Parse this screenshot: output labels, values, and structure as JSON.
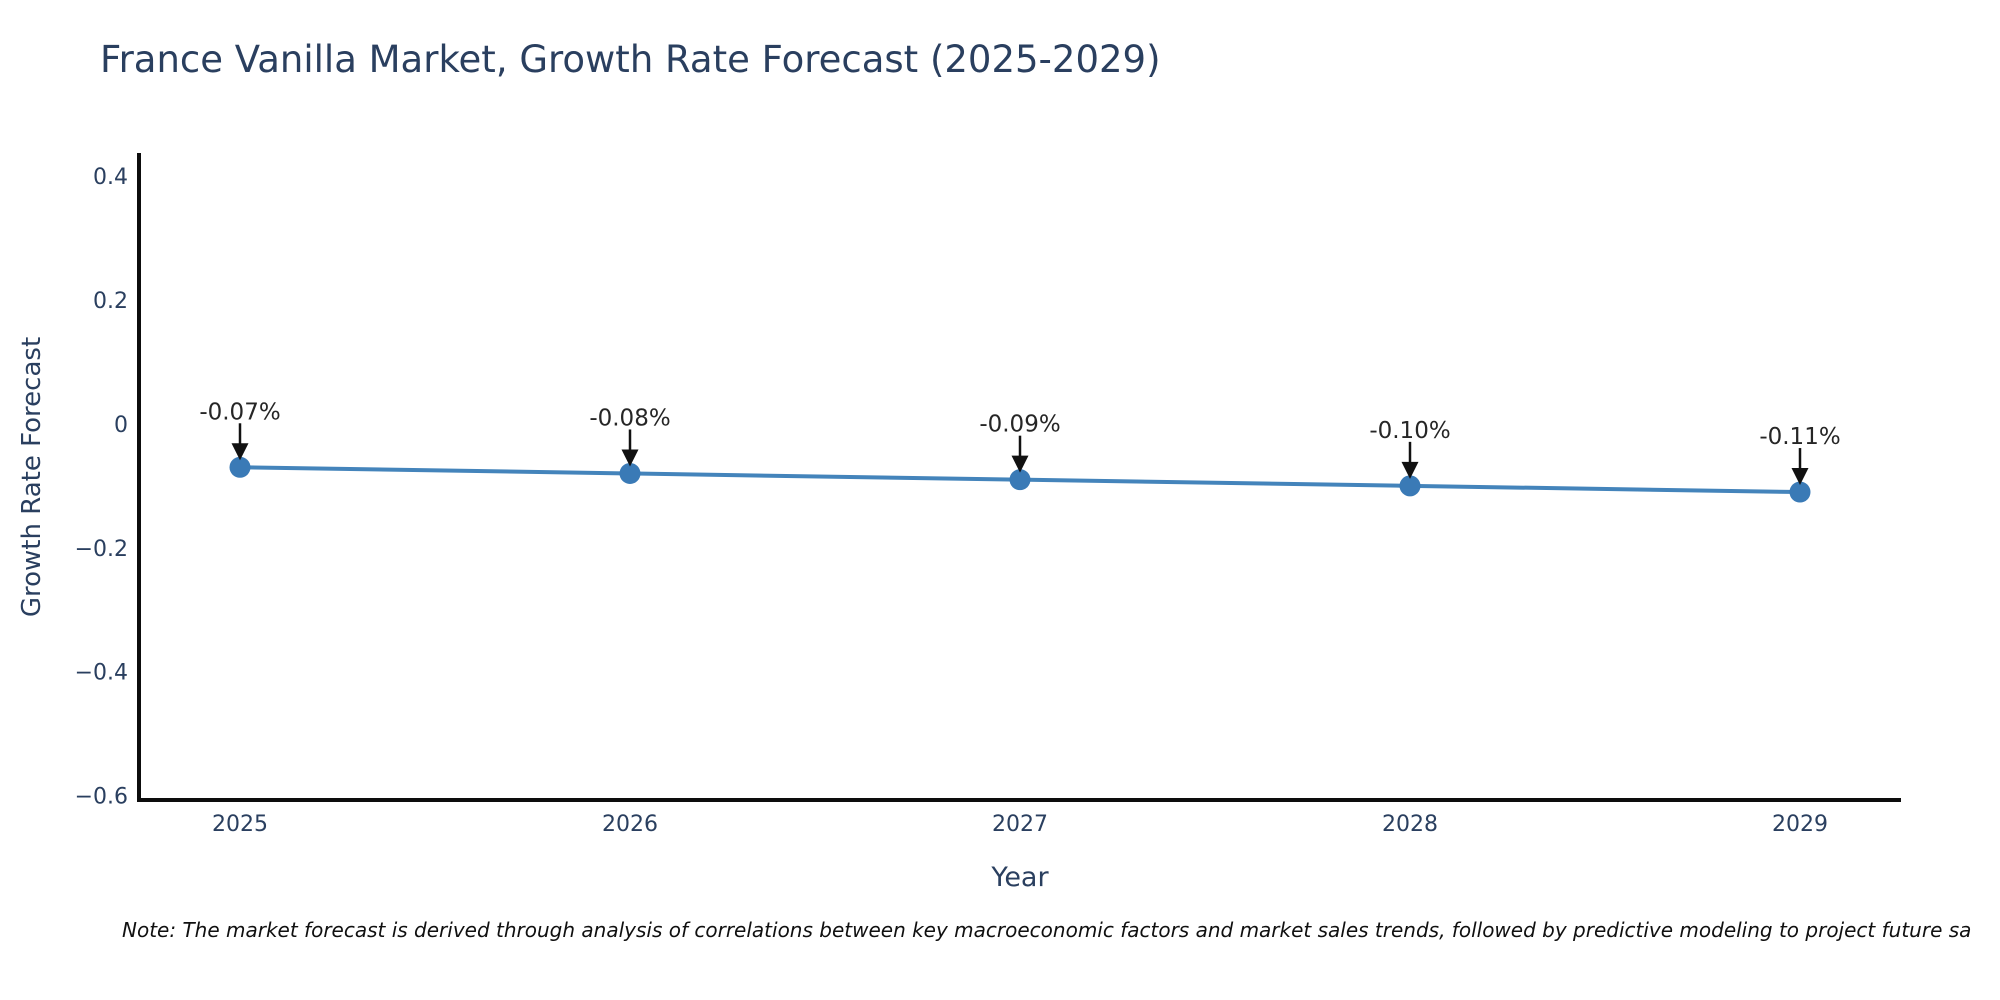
{
  "title": "France Vanilla Market, Growth Rate Forecast (2025-2029)",
  "note": "Note: The market forecast is derived through analysis of correlations between key macroeconomic factors and market sales trends, followed by predictive modeling to project future sa",
  "chart_data": {
    "type": "line",
    "title": "France Vanilla Market, Growth Rate Forecast (2025-2029)",
    "xlabel": "Year",
    "ylabel": "Growth Rate Forecast",
    "x": [
      2025,
      2026,
      2027,
      2028,
      2029
    ],
    "xtick_labels": [
      "2025",
      "2026",
      "2027",
      "2028",
      "2029"
    ],
    "series": [
      {
        "name": "Growth Rate Forecast",
        "values": [
          -0.07,
          -0.08,
          -0.09,
          -0.1,
          -0.11
        ]
      }
    ],
    "point_labels": [
      "-0.07%",
      "-0.08%",
      "-0.09%",
      "-0.10%",
      "-0.11%"
    ],
    "yticks": [
      0.4,
      0.2,
      0,
      -0.2,
      -0.4,
      -0.6
    ],
    "ytick_labels": [
      "0.4",
      "0.2",
      "0",
      "−0.2",
      "−0.4",
      "−0.6"
    ],
    "ylim": [
      -0.607,
      0.434
    ],
    "grid": false,
    "legend": "none",
    "annotation_style": "black-arrow-pointing-down-to-marker",
    "colors": {
      "line": "#4484bb",
      "marker": "#3a7ab6",
      "axis": "#0d0d0d",
      "text": "#2a3f5f",
      "annotation": "#262626",
      "arrow": "#111111",
      "background": "#ffffff"
    }
  }
}
